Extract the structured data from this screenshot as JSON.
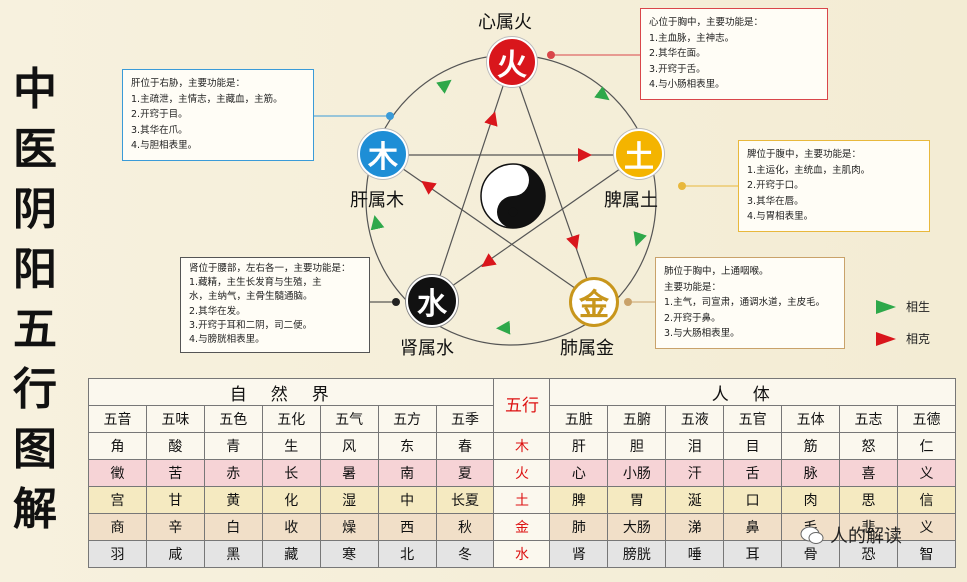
{
  "title_chars": [
    "中",
    "医",
    "阴",
    "阳",
    "五",
    "行",
    "图",
    "解"
  ],
  "elements": {
    "fire": {
      "char": "火",
      "label": "心属火",
      "color": "#d9161c",
      "text_color": "#ffffff"
    },
    "wood": {
      "char": "木",
      "label": "肝属木",
      "color": "#1e8ed6",
      "text_color": "#ffffff"
    },
    "earth": {
      "char": "土",
      "label": "脾属土",
      "color": "#f4b400",
      "text_color": "#ffffff"
    },
    "water": {
      "char": "水",
      "label": "肾属水",
      "color": "#111111",
      "text_color": "#ffffff"
    },
    "metal": {
      "char": "金",
      "label": "肺属金",
      "color": "#ffffff",
      "text_color": "#c8961c"
    }
  },
  "boxes": {
    "fire": {
      "color": "#d9464a",
      "lines": [
        "心位于胸中，主要功能是：",
        "1.主血脉，主神志。",
        "2.其华在面。",
        "3.开窍于舌。",
        "4.与小肠相表里。"
      ]
    },
    "wood": {
      "color": "#3a9bd8",
      "lines": [
        "肝位于右胁，主要功能是：",
        "1.主疏泄，主情志，主藏血，主筋。",
        "2.开窍于目。",
        "3.其华在爪。",
        "4.与胆相表里。"
      ]
    },
    "earth": {
      "color": "#e8b83c",
      "lines": [
        "脾位于腹中，主要功能是：",
        "1.主运化，主统血，主肌肉。",
        "2.开窍于口。",
        "3.其华在唇。",
        "4.与胃相表里。"
      ]
    },
    "water": {
      "color": "#555555",
      "lines": [
        "肾位于腰部，左右各一，主要功能是：",
        "1.藏精，主生长发育与生殖，主",
        "水，主纳气，主骨生髓通脑。",
        "2.其华在发。",
        "3.开窍于耳和二阴，司二便。",
        "4.与膀胱相表里。"
      ]
    },
    "metal": {
      "color": "#c9a26a",
      "lines": [
        "肺位于胸中，上通咽喉。",
        "主要功能是：",
        "1.主气，司宣肃，通调水道，主皮毛。",
        "2.开窍于鼻。",
        "3.与大肠相表里。"
      ]
    }
  },
  "legend": {
    "generate": "相生",
    "restrain": "相克",
    "generate_color": "#2ea84a",
    "restrain_color": "#d9161c"
  },
  "table": {
    "nature_header": "自然界",
    "wuxing_header": "五行",
    "human_header": "人体",
    "nature_cols": [
      "五音",
      "五味",
      "五色",
      "五化",
      "五气",
      "五方",
      "五季"
    ],
    "human_cols": [
      "五脏",
      "五腑",
      "五液",
      "五官",
      "五体",
      "五志",
      "五德"
    ],
    "rows": [
      {
        "nature": [
          "角",
          "酸",
          "青",
          "生",
          "风",
          "东",
          "春"
        ],
        "wuxing": "木",
        "human": [
          "肝",
          "胆",
          "泪",
          "目",
          "筋",
          "怒",
          "仁"
        ]
      },
      {
        "nature": [
          "徵",
          "苦",
          "赤",
          "长",
          "暑",
          "南",
          "夏"
        ],
        "wuxing": "火",
        "human": [
          "心",
          "小肠",
          "汗",
          "舌",
          "脉",
          "喜",
          "义"
        ]
      },
      {
        "nature": [
          "宫",
          "甘",
          "黄",
          "化",
          "湿",
          "中",
          "长夏"
        ],
        "wuxing": "土",
        "human": [
          "脾",
          "胃",
          "涎",
          "口",
          "肉",
          "思",
          "信"
        ]
      },
      {
        "nature": [
          "商",
          "辛",
          "白",
          "收",
          "燥",
          "西",
          "秋"
        ],
        "wuxing": "金",
        "human": [
          "肺",
          "大肠",
          "涕",
          "鼻",
          "毛",
          "悲",
          "义"
        ]
      },
      {
        "nature": [
          "羽",
          "咸",
          "黑",
          "藏",
          "寒",
          "北",
          "冬"
        ],
        "wuxing": "水",
        "human": [
          "肾",
          "膀胱",
          "唾",
          "耳",
          "骨",
          "恐",
          "智"
        ]
      }
    ]
  },
  "watermark": "人的解读"
}
